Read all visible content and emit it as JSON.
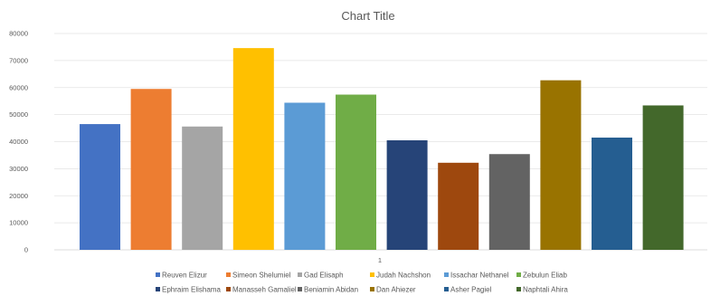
{
  "chart_data": {
    "type": "bar",
    "title": "Chart Title",
    "xlabel": "",
    "ylabel": "",
    "categories": [
      "1"
    ],
    "ylim": [
      0,
      80000
    ],
    "yticks": [
      0,
      10000,
      20000,
      30000,
      40000,
      50000,
      60000,
      70000,
      80000
    ],
    "ytick_labels": [
      "0",
      "10000",
      "20000",
      "30000",
      "40000",
      "50000",
      "60000",
      "70000",
      "80000"
    ],
    "grid": true,
    "legend_position": "bottom",
    "series": [
      {
        "name": "Reuven Elizur",
        "values": [
          46500
        ],
        "color": "#4472C4"
      },
      {
        "name": "Simeon Shelumiel",
        "values": [
          59500
        ],
        "color": "#ED7D31"
      },
      {
        "name": "Gad Elisaph",
        "values": [
          45600
        ],
        "color": "#A5A5A5"
      },
      {
        "name": "Judah Nachshon",
        "values": [
          74600
        ],
        "color": "#FFC000"
      },
      {
        "name": "Issachar Nethanel",
        "values": [
          54400
        ],
        "color": "#5B9BD5"
      },
      {
        "name": "Zebulun Eliab",
        "values": [
          57400
        ],
        "color": "#70AD47"
      },
      {
        "name": "Ephraim Elishama",
        "values": [
          40500
        ],
        "color": "#264478"
      },
      {
        "name": "Manasseh Gamaliel",
        "values": [
          32200
        ],
        "color": "#9E480E"
      },
      {
        "name": "Beniamin Abidan",
        "values": [
          35400
        ],
        "color": "#636363"
      },
      {
        "name": "Dan Ahiezer",
        "values": [
          62700
        ],
        "color": "#997300"
      },
      {
        "name": "Asher Pagiel",
        "values": [
          41500
        ],
        "color": "#255E91"
      },
      {
        "name": "Naphtali Ahira",
        "values": [
          53400
        ],
        "color": "#43682B"
      }
    ]
  }
}
